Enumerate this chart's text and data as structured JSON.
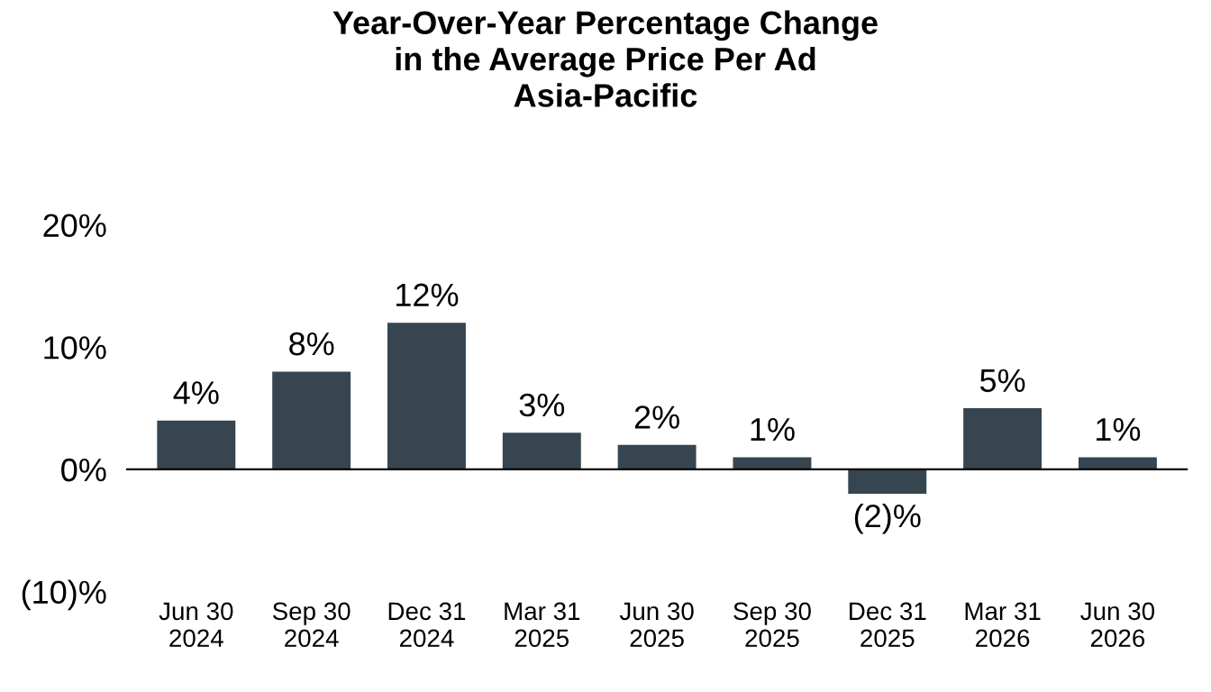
{
  "chart_data": {
    "type": "bar",
    "title": "Year-Over-Year Percentage Change\nin the Average Price Per Ad\nAsia-Pacific",
    "categories": [
      "Jun 30\n2024",
      "Sep 30\n2024",
      "Dec 31\n2024",
      "Mar 31\n2025",
      "Jun 30\n2025",
      "Sep 30\n2025",
      "Dec 31\n2025",
      "Mar 31\n2026",
      "Jun 30\n2026"
    ],
    "values": [
      4,
      8,
      12,
      3,
      2,
      1,
      -2,
      5,
      1
    ],
    "value_labels": [
      "4%",
      "8%",
      "12%",
      "3%",
      "2%",
      "1%",
      "(2)%",
      "5%",
      "1%"
    ],
    "color": "#36454f",
    "ylim": [
      -10,
      20
    ],
    "yticks": [
      {
        "value": -10,
        "label": "(10)%"
      },
      {
        "value": 0,
        "label": "0%"
      },
      {
        "value": 10,
        "label": "10%"
      },
      {
        "value": 20,
        "label": "20%"
      }
    ],
    "legend": false
  }
}
